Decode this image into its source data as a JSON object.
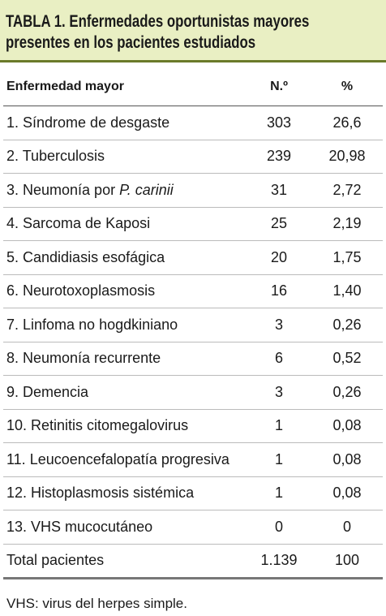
{
  "title": {
    "line1": "TABLA 1. Enfermedades oportunistas mayores",
    "line2": "presentes en los pacientes estudiados"
  },
  "table": {
    "header": [
      "Enfermedad mayor",
      "N.º",
      "%"
    ],
    "rows": [
      [
        "1. Síndrome de desgaste",
        "303",
        "26,6"
      ],
      [
        "2. Tuberculosis",
        "239",
        "20,98"
      ],
      [
        {
          "text": "3. Neumonía por ",
          "italic": "P. carinii"
        },
        "31",
        "2,72"
      ],
      [
        "4. Sarcoma de Kaposi",
        "25",
        "2,19"
      ],
      [
        "5. Candidiasis esofágica",
        "20",
        "1,75"
      ],
      [
        "6. Neurotoxoplasmosis",
        "16",
        "1,40"
      ],
      [
        "7. Linfoma no hogdkiniano",
        "3",
        "0,26"
      ],
      [
        "8. Neumonía recurrente",
        "6",
        "0,52"
      ],
      [
        "9. Demencia",
        "3",
        "0,26"
      ],
      [
        "10. Retinitis citomegalovirus",
        "1",
        "0,08"
      ],
      [
        "11. Leucoencefalopatía progresiva",
        "1",
        "0,08"
      ],
      [
        "12. Histoplasmosis sistémica",
        "1",
        "0,08"
      ],
      [
        "13. VHS mucocutáneo",
        "0",
        "0"
      ]
    ],
    "total": [
      "Total pacientes",
      "1.139",
      "100"
    ]
  },
  "footnote": "VHS: virus del herpes simple."
}
